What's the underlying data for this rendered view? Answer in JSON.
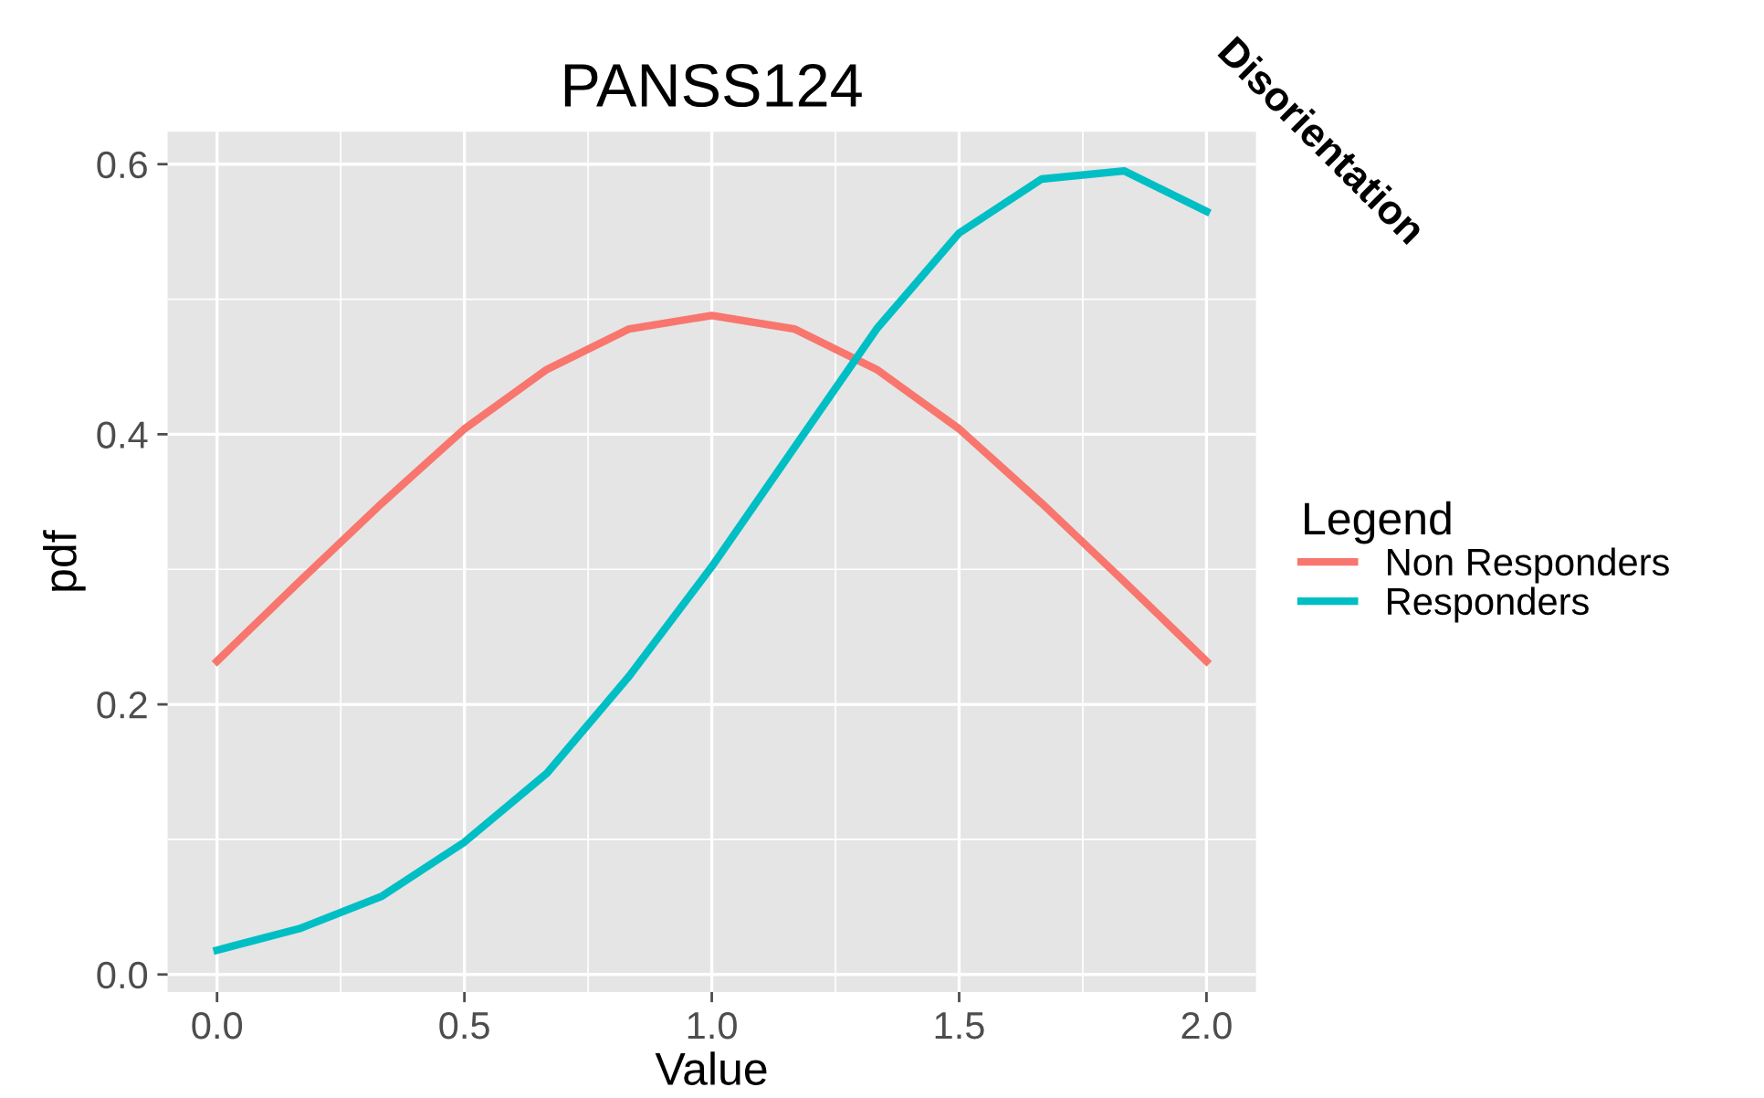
{
  "chart_data": {
    "type": "line",
    "title": "PANSS124",
    "xlabel": "Value",
    "ylabel": "pdf",
    "legend_title": "Legend",
    "annotations": [
      "Disorientation"
    ],
    "x": [
      0,
      0.1667,
      0.3333,
      0.5,
      0.6667,
      0.8333,
      1,
      1.1667,
      1.3333,
      1.5,
      1.6667,
      1.8333,
      2
    ],
    "series": [
      {
        "name": "Non Responders",
        "color": "#f8766d",
        "values": [
          0.232,
          0.291,
          0.349,
          0.404,
          0.448,
          0.478,
          0.488,
          0.478,
          0.448,
          0.404,
          0.349,
          0.291,
          0.232
        ]
      },
      {
        "name": "Responders",
        "color": "#00bfc4",
        "values": [
          0.018,
          0.034,
          0.058,
          0.098,
          0.149,
          0.221,
          0.302,
          0.39,
          0.478,
          0.549,
          0.589,
          0.595,
          0.565
        ]
      }
    ],
    "xlim": [
      -0.1,
      2.1
    ],
    "ylim": [
      -0.013,
      0.624
    ],
    "xticks": [
      {
        "value": 0,
        "label": "0.0"
      },
      0.5,
      {
        "value": 1,
        "label": "1.0"
      },
      1.5,
      {
        "value": 2,
        "label": "2.0"
      }
    ],
    "yticks": [
      {
        "value": 0,
        "label": "0.0"
      },
      0.2,
      0.4,
      0.6
    ],
    "grid": true,
    "legend": "right",
    "line_style": "solid",
    "marker": "none"
  }
}
